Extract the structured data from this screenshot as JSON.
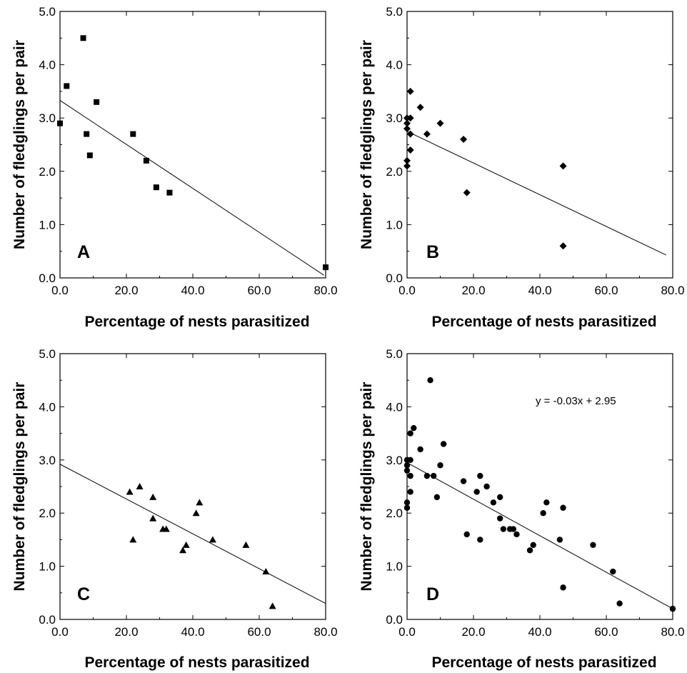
{
  "colors": {
    "marker": "#000000",
    "line": "#000000",
    "frame": "#000000",
    "background": "#ffffff"
  },
  "chart_data": [
    {
      "type": "scatter",
      "panel_label": "A",
      "marker": "square",
      "xlabel": "Percentage of nests parasitized",
      "ylabel": "Number of fledglings per pair",
      "xlim": [
        0,
        80
      ],
      "ylim": [
        0,
        5
      ],
      "x_ticks": [
        "0.0",
        "20.0",
        "40.0",
        "60.0",
        "80.0"
      ],
      "y_ticks": [
        "0.0",
        "1.0",
        "2.0",
        "3.0",
        "4.0",
        "5.0"
      ],
      "grid": false,
      "points": [
        [
          0,
          2.9
        ],
        [
          2,
          3.6
        ],
        [
          7,
          4.5
        ],
        [
          8,
          2.7
        ],
        [
          9,
          2.3
        ],
        [
          11,
          3.3
        ],
        [
          22,
          2.7
        ],
        [
          26,
          2.2
        ],
        [
          29,
          1.7
        ],
        [
          33,
          1.6
        ],
        [
          80,
          0.2
        ]
      ],
      "trendline": {
        "x": [
          0,
          79.5
        ],
        "y": [
          3.33,
          0.05
        ]
      },
      "equation": ""
    },
    {
      "type": "scatter",
      "panel_label": "B",
      "marker": "diamond",
      "xlabel": "Percentage of nests parasitized",
      "ylabel": "Number of fledglings per pair",
      "xlim": [
        0,
        80
      ],
      "ylim": [
        0,
        5
      ],
      "x_ticks": [
        "0.0",
        "20.0",
        "40.0",
        "60.0",
        "80.0"
      ],
      "y_ticks": [
        "0.0",
        "1.0",
        "2.0",
        "3.0",
        "4.0",
        "5.0"
      ],
      "grid": false,
      "points": [
        [
          0,
          3.0
        ],
        [
          0,
          2.9
        ],
        [
          0,
          2.8
        ],
        [
          0,
          2.2
        ],
        [
          0,
          2.1
        ],
        [
          1,
          3.5
        ],
        [
          1,
          3.0
        ],
        [
          1,
          2.7
        ],
        [
          1,
          2.4
        ],
        [
          4,
          3.2
        ],
        [
          6,
          2.7
        ],
        [
          10,
          2.9
        ],
        [
          17,
          2.6
        ],
        [
          18,
          1.6
        ],
        [
          47,
          2.1
        ],
        [
          47,
          0.6
        ]
      ],
      "trendline": {
        "x": [
          0,
          78
        ],
        "y": [
          2.75,
          0.43
        ]
      },
      "equation": ""
    },
    {
      "type": "scatter",
      "panel_label": "C",
      "marker": "triangle",
      "xlabel": "Percentage of nests parasitized",
      "ylabel": "Number of fledglings per pair",
      "xlim": [
        0,
        80
      ],
      "ylim": [
        0,
        5
      ],
      "x_ticks": [
        "0.0",
        "20.0",
        "40.0",
        "60.0",
        "80.0"
      ],
      "y_ticks": [
        "0.0",
        "1.0",
        "2.0",
        "3.0",
        "4.0",
        "5.0"
      ],
      "grid": false,
      "points": [
        [
          21,
          2.4
        ],
        [
          22,
          1.5
        ],
        [
          24,
          2.5
        ],
        [
          28,
          2.3
        ],
        [
          28,
          1.9
        ],
        [
          31,
          1.7
        ],
        [
          32,
          1.7
        ],
        [
          37,
          1.3
        ],
        [
          38,
          1.4
        ],
        [
          41,
          2.0
        ],
        [
          42,
          2.2
        ],
        [
          46,
          1.5
        ],
        [
          56,
          1.4
        ],
        [
          62,
          0.9
        ],
        [
          64,
          0.25
        ]
      ],
      "trendline": {
        "x": [
          0,
          80
        ],
        "y": [
          2.92,
          0.3
        ]
      },
      "equation": ""
    },
    {
      "type": "scatter",
      "panel_label": "D",
      "marker": "circle",
      "xlabel": "Percentage of nests parasitized",
      "ylabel": "Number of fledglings per pair",
      "xlim": [
        0,
        80
      ],
      "ylim": [
        0,
        5
      ],
      "x_ticks": [
        "0.0",
        "20.0",
        "40.0",
        "60.0",
        "80.0"
      ],
      "y_ticks": [
        "0.0",
        "1.0",
        "2.0",
        "3.0",
        "4.0",
        "5.0"
      ],
      "grid": false,
      "points": [
        [
          0,
          3.0
        ],
        [
          0,
          2.9
        ],
        [
          0,
          2.8
        ],
        [
          0,
          2.2
        ],
        [
          0,
          2.1
        ],
        [
          1,
          3.5
        ],
        [
          1,
          3.0
        ],
        [
          1,
          2.7
        ],
        [
          1,
          2.4
        ],
        [
          2,
          3.6
        ],
        [
          4,
          3.2
        ],
        [
          6,
          2.7
        ],
        [
          7,
          4.5
        ],
        [
          8,
          2.7
        ],
        [
          9,
          2.3
        ],
        [
          10,
          2.9
        ],
        [
          11,
          3.3
        ],
        [
          17,
          2.6
        ],
        [
          18,
          1.6
        ],
        [
          21,
          2.4
        ],
        [
          22,
          2.7
        ],
        [
          22,
          1.5
        ],
        [
          24,
          2.5
        ],
        [
          26,
          2.2
        ],
        [
          28,
          2.3
        ],
        [
          28,
          1.9
        ],
        [
          29,
          1.7
        ],
        [
          31,
          1.7
        ],
        [
          32,
          1.7
        ],
        [
          33,
          1.6
        ],
        [
          37,
          1.3
        ],
        [
          38,
          1.4
        ],
        [
          41,
          2.0
        ],
        [
          42,
          2.2
        ],
        [
          46,
          1.5
        ],
        [
          47,
          2.1
        ],
        [
          47,
          0.6
        ],
        [
          56,
          1.4
        ],
        [
          62,
          0.9
        ],
        [
          64,
          0.3
        ],
        [
          80,
          0.2
        ]
      ],
      "trendline": {
        "x": [
          0,
          80
        ],
        "y": [
          2.95,
          0.2
        ]
      },
      "equation": "y = -0.03x + 2.95"
    }
  ]
}
